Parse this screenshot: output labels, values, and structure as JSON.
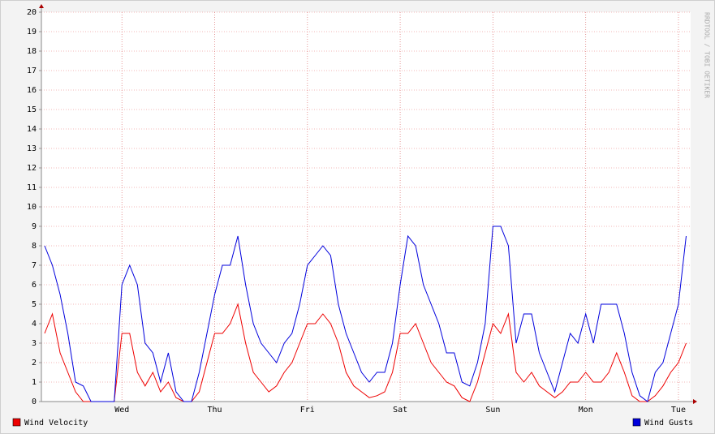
{
  "chart_data": {
    "type": "line",
    "watermark": "RRDTOOL / TOBI OETIKER",
    "categories": [
      null,
      null,
      null,
      null,
      null,
      null,
      null,
      null,
      null,
      null,
      "Wed",
      null,
      null,
      null,
      null,
      null,
      null,
      null,
      null,
      null,
      null,
      null,
      "Thu",
      null,
      null,
      null,
      null,
      null,
      null,
      null,
      null,
      null,
      null,
      null,
      "Fri",
      null,
      null,
      null,
      null,
      null,
      null,
      null,
      null,
      null,
      null,
      null,
      "Sat",
      null,
      null,
      null,
      null,
      null,
      null,
      null,
      null,
      null,
      null,
      null,
      "Sun",
      null,
      null,
      null,
      null,
      null,
      null,
      null,
      null,
      null,
      null,
      null,
      "Mon",
      null,
      null,
      null,
      null,
      null,
      null,
      null,
      null,
      null,
      null,
      null,
      "Tue",
      null
    ],
    "series": [
      {
        "name": "Wind Velocity",
        "color": "#ee0000",
        "values": [
          3.5,
          4.5,
          2.5,
          1.5,
          0.5,
          0,
          0,
          0,
          0,
          0,
          3.5,
          3.5,
          1.5,
          0.8,
          1.5,
          0.5,
          1,
          0.2,
          0,
          0,
          0.5,
          2,
          3.5,
          3.5,
          4,
          5,
          3,
          1.5,
          1,
          0.5,
          0.8,
          1.5,
          2,
          3,
          4,
          4,
          4.5,
          4,
          3,
          1.5,
          0.8,
          0.5,
          0.2,
          0.3,
          0.5,
          1.5,
          3.5,
          3.5,
          4,
          3,
          2,
          1.5,
          1,
          0.8,
          0.2,
          0,
          1,
          2.5,
          4,
          3.5,
          4.5,
          1.5,
          1,
          1.5,
          0.8,
          0.5,
          0.2,
          0.5,
          1,
          1,
          1.5,
          1,
          1,
          1.5,
          2.5,
          1.5,
          0.3,
          0,
          0,
          0.3,
          0.8,
          1.5,
          2,
          3
        ]
      },
      {
        "name": "Wind Gusts",
        "color": "#0000dd",
        "values": [
          8,
          7,
          5.5,
          3.5,
          1,
          0.8,
          0,
          0,
          0,
          0,
          6,
          7,
          6,
          3,
          2.5,
          1,
          2.5,
          0.5,
          0,
          0,
          1.5,
          3.5,
          5.5,
          7,
          7,
          8.5,
          6,
          4,
          3,
          2.5,
          2,
          3,
          3.5,
          5,
          7,
          7.5,
          8,
          7.5,
          5,
          3.5,
          2.5,
          1.5,
          1,
          1.5,
          1.5,
          3,
          6,
          8.5,
          8,
          6,
          5,
          4,
          2.5,
          2.5,
          1,
          0.8,
          2,
          4,
          9,
          9,
          8,
          3,
          4.5,
          4.5,
          2.5,
          1.5,
          0.5,
          2,
          3.5,
          3,
          4.5,
          3,
          5,
          5,
          5,
          3.5,
          1.5,
          0.3,
          0,
          1.5,
          2,
          3.5,
          5,
          8.5
        ]
      }
    ],
    "ylim": [
      0,
      20
    ],
    "yticks": [
      0,
      1,
      2,
      3,
      4,
      5,
      6,
      7,
      8,
      9,
      10,
      11,
      12,
      13,
      14,
      15,
      16,
      17,
      18,
      19,
      20
    ],
    "grid": true
  }
}
